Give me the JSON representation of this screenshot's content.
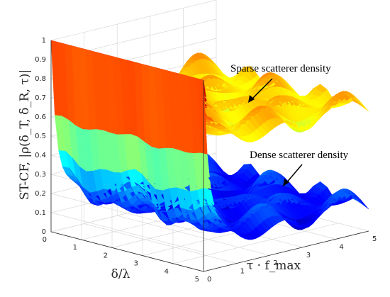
{
  "chart_data": {
    "type": "surface",
    "axes": {
      "x": {
        "label": "τ · f_max",
        "ticks": [
          "0",
          "1",
          "2",
          "3",
          "4",
          "5"
        ],
        "range": [
          0,
          5
        ]
      },
      "y": {
        "label": "δ/λ",
        "ticks": [
          "0",
          "1",
          "2",
          "3",
          "4",
          "5"
        ],
        "range": [
          0,
          5
        ]
      },
      "z": {
        "label": "ST-CF, |ρ(δ_T, δ_R, τ)|",
        "ticks": [
          "0",
          "0.1",
          "0.2",
          "0.3",
          "0.4",
          "0.5",
          "0.6",
          "0.7",
          "0.8",
          "0.9",
          "1"
        ],
        "range": [
          0,
          1
        ]
      }
    },
    "grid": true,
    "colormap": "jet",
    "series": [
      {
        "name": "Sparse scatterer density",
        "start_value": 1.0,
        "plateau": 0.68,
        "ripple": 0.06
      },
      {
        "name": "Dense scatterer density",
        "start_value": 1.0,
        "plateau": 0.17,
        "ripple": 0.06
      }
    ],
    "annotations": [
      {
        "text": "Sparse scatterer density",
        "target_series": 0
      },
      {
        "text": "Dense scatterer density",
        "target_series": 1
      }
    ]
  }
}
